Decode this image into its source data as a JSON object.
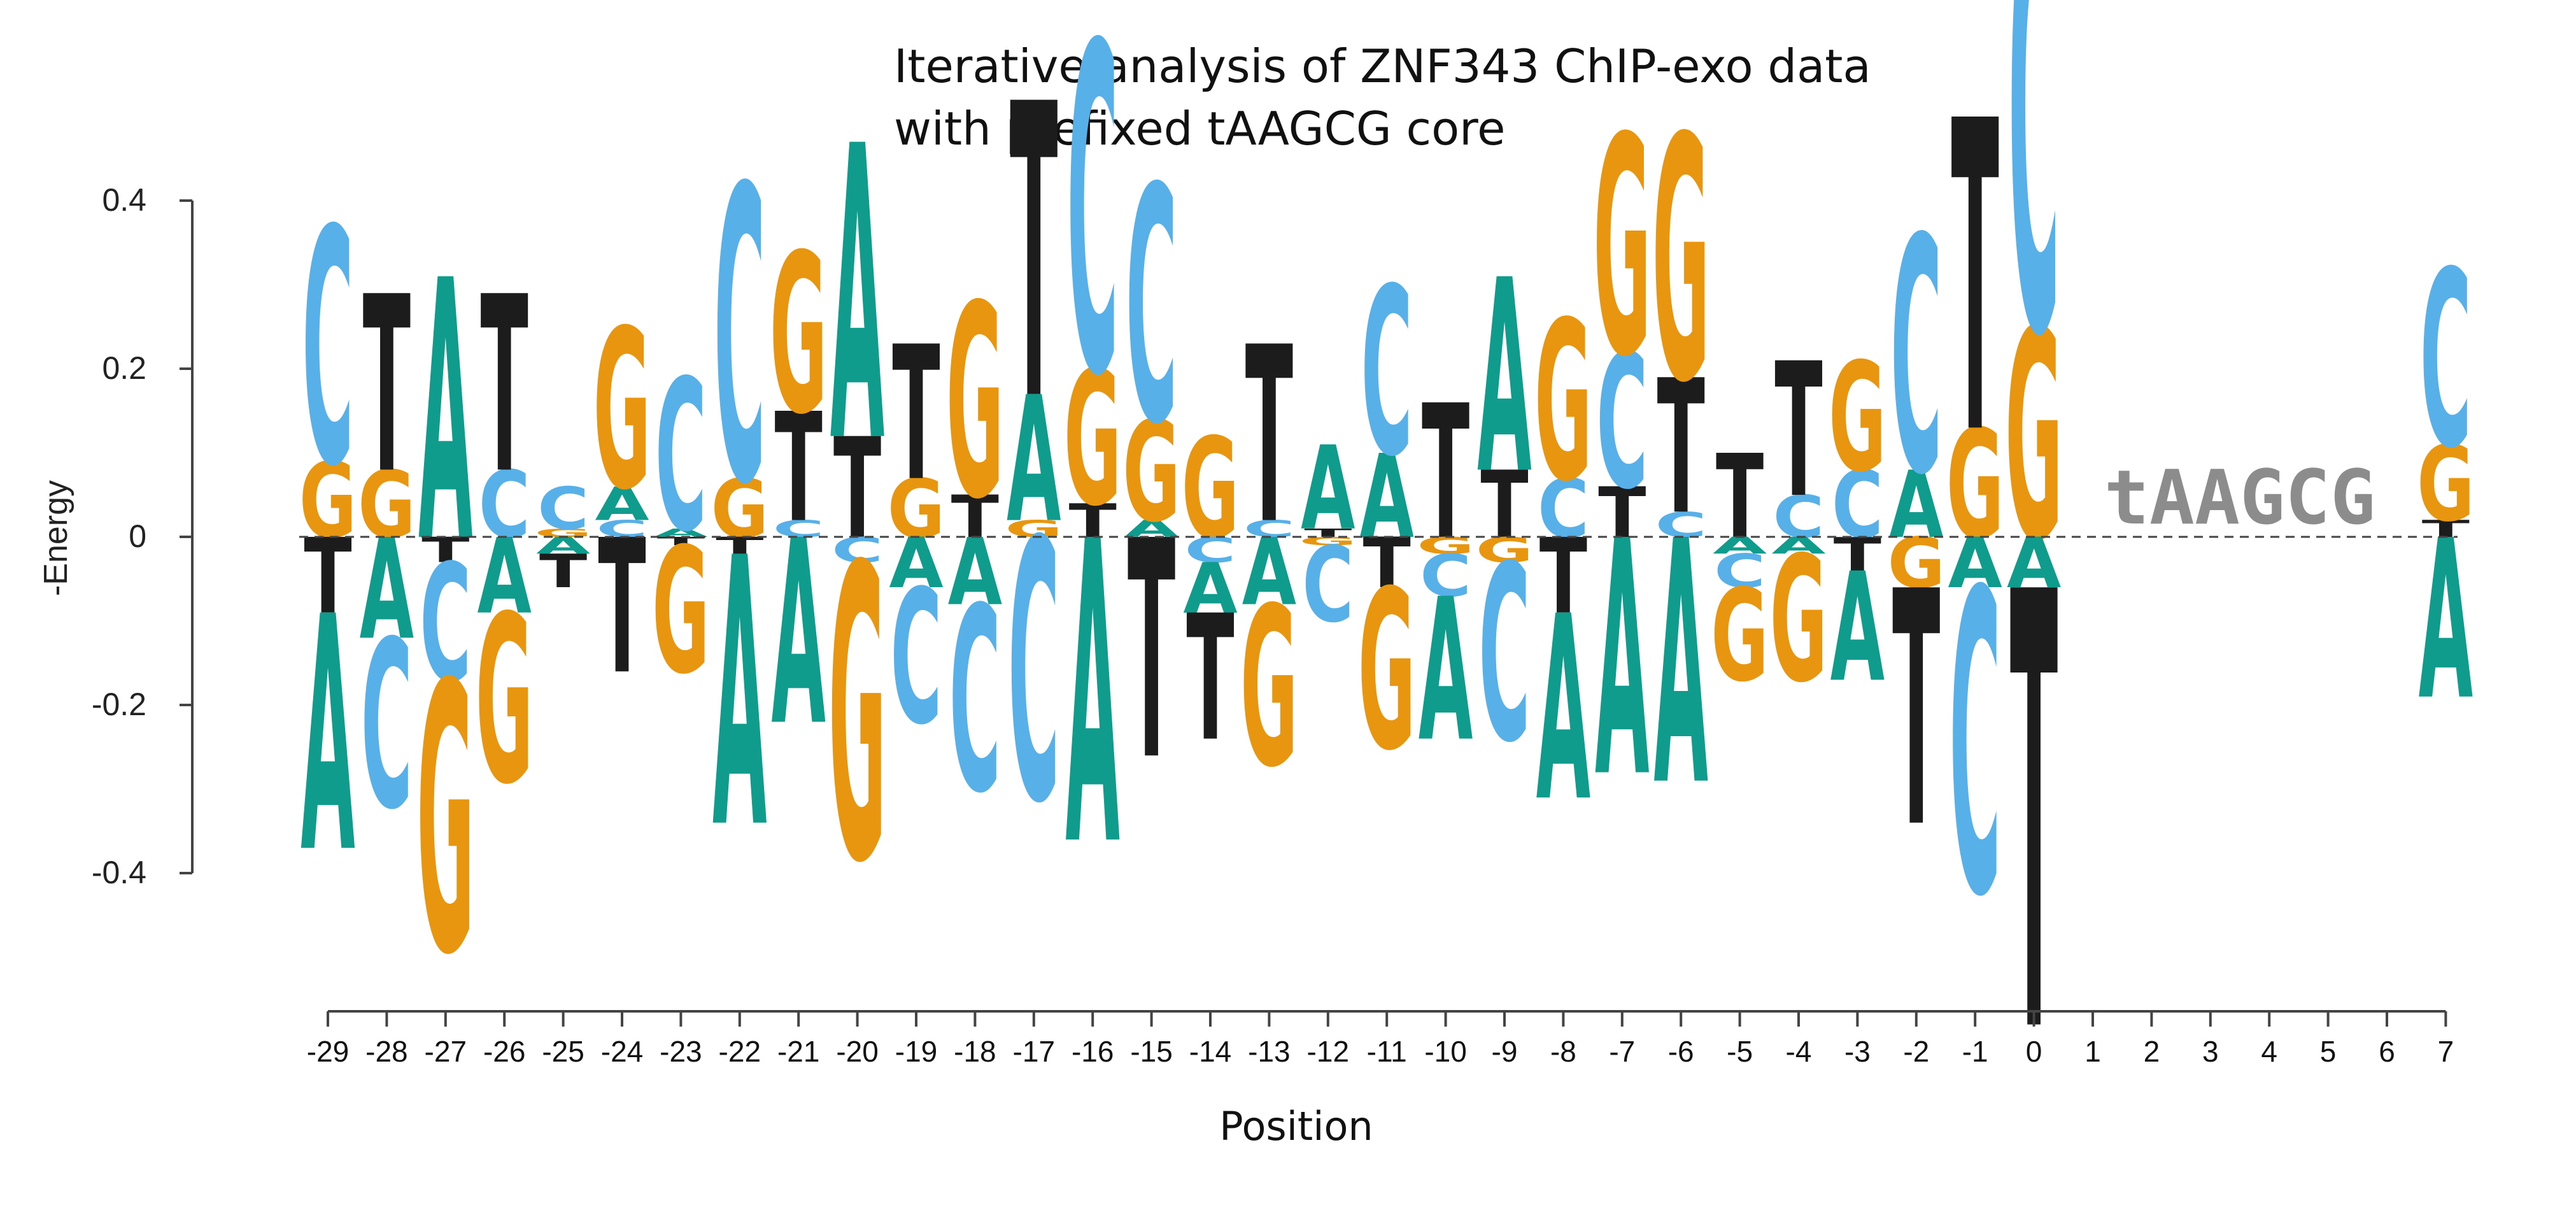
{
  "chart_data": {
    "type": "energy-logo",
    "title": "Iterative analysis of ZNF343 ChIP-exo data",
    "subtitle": "with prefixed tAAGCG core",
    "xlabel": "Position",
    "ylabel": "-Energy",
    "ylim": [
      -0.52,
      0.52
    ],
    "yticks": [
      "0.4",
      "0.2",
      "0",
      "-0.2",
      "-0.4"
    ],
    "ytick_values": [
      0.4,
      0.2,
      0,
      -0.2,
      -0.4
    ],
    "zero_line": "dashed",
    "core_label": "tAAGCG",
    "core_positions": [
      1,
      2,
      3,
      4,
      5,
      6
    ],
    "colors": {
      "A": "#109c8c",
      "C": "#58b0e8",
      "G": "#e8960f",
      "T": "#1c1c1c",
      "core": "#8c8c8c",
      "axis": "#444444"
    },
    "positions": [
      {
        "pos": -29,
        "A": -0.28,
        "C": 0.28,
        "G": 0.09,
        "T": -0.09
      },
      {
        "pos": -28,
        "A": -0.12,
        "C": -0.2,
        "G": 0.08,
        "T": 0.21
      },
      {
        "pos": -27,
        "A": 0.31,
        "C": -0.14,
        "G": -0.32,
        "T": -0.03
      },
      {
        "pos": -26,
        "A": -0.09,
        "C": 0.08,
        "G": -0.2,
        "T": 0.21
      },
      {
        "pos": -25,
        "A": -0.02,
        "C": 0.05,
        "G": 0.01,
        "T": -0.04
      },
      {
        "pos": -24,
        "A": 0.04,
        "C": 0.02,
        "G": 0.19,
        "T": -0.16
      },
      {
        "pos": -23,
        "A": 0.01,
        "C": 0.18,
        "G": -0.15,
        "T": -0.01
      },
      {
        "pos": -22,
        "A": -0.32,
        "C": 0.35,
        "G": 0.07,
        "T": -0.02
      },
      {
        "pos": -21,
        "A": -0.22,
        "C": 0.02,
        "G": 0.19,
        "T": 0.13
      },
      {
        "pos": -20,
        "A": 0.35,
        "C": -0.03,
        "G": -0.35,
        "T": 0.12
      },
      {
        "pos": -19,
        "A": -0.06,
        "C": -0.16,
        "G": 0.07,
        "T": 0.16
      },
      {
        "pos": -18,
        "A": -0.08,
        "C": -0.22,
        "G": 0.23,
        "T": 0.05
      },
      {
        "pos": -17,
        "A": 0.15,
        "C": -0.31,
        "G": 0.02,
        "T": 0.35
      },
      {
        "pos": -16,
        "A": -0.36,
        "C": 0.39,
        "G": 0.16,
        "T": 0.04
      },
      {
        "pos": -15,
        "A": 0.02,
        "C": 0.28,
        "G": 0.12,
        "T": -0.26
      },
      {
        "pos": -14,
        "A": -0.06,
        "C": -0.03,
        "G": 0.12,
        "T": -0.15
      },
      {
        "pos": -13,
        "A": -0.08,
        "C": 0.02,
        "G": -0.19,
        "T": 0.21
      },
      {
        "pos": -12,
        "A": 0.1,
        "C": -0.09,
        "G": -0.01,
        "T": 0.01
      },
      {
        "pos": -11,
        "A": 0.1,
        "C": 0.2,
        "G": -0.19,
        "T": -0.06
      },
      {
        "pos": -10,
        "A": -0.17,
        "C": -0.05,
        "G": -0.02,
        "T": 0.16
      },
      {
        "pos": -9,
        "A": 0.23,
        "C": -0.21,
        "G": -0.03,
        "T": 0.08
      },
      {
        "pos": -8,
        "A": -0.22,
        "C": 0.07,
        "G": 0.19,
        "T": -0.09
      },
      {
        "pos": -7,
        "A": -0.28,
        "C": 0.16,
        "G": 0.26,
        "T": 0.06
      },
      {
        "pos": -6,
        "A": -0.29,
        "C": 0.03,
        "G": 0.29,
        "T": 0.16
      },
      {
        "pos": -5,
        "A": -0.02,
        "C": -0.04,
        "G": -0.11,
        "T": 0.1
      },
      {
        "pos": -4,
        "A": -0.02,
        "C": 0.05,
        "G": -0.15,
        "T": 0.16
      },
      {
        "pos": -3,
        "A": -0.13,
        "C": 0.08,
        "G": 0.13,
        "T": -0.04
      },
      {
        "pos": -2,
        "A": 0.08,
        "C": 0.28,
        "G": -0.06,
        "T": -0.28
      },
      {
        "pos": -1,
        "A": -0.06,
        "C": -0.36,
        "G": 0.13,
        "T": 0.37
      },
      {
        "pos": 0,
        "A": -0.06,
        "C": 0.53,
        "G": 0.25,
        "T": -0.52
      },
      {
        "pos": 7,
        "A": -0.19,
        "C": 0.21,
        "G": 0.09,
        "T": 0.02
      }
    ]
  }
}
